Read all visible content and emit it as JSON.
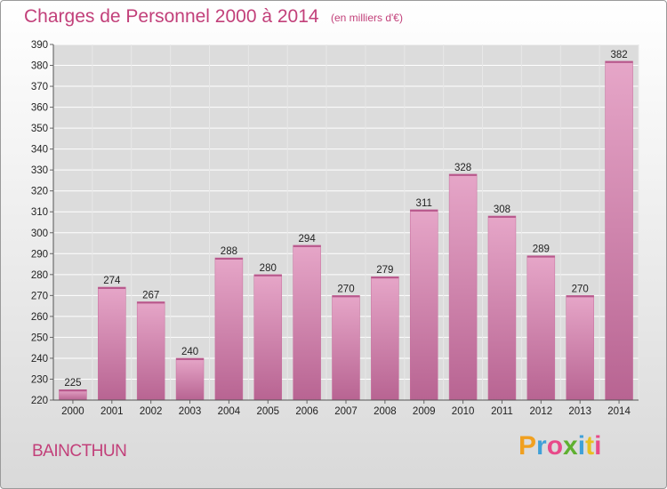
{
  "title": "Charges de Personnel 2000 à 2014",
  "subtitle": "(en milliers d'€)",
  "commune": "BAINCTHUN",
  "logo": {
    "letters": [
      "P",
      "r",
      "o",
      "x",
      "i",
      "t",
      "i"
    ],
    "colors": [
      "#f0a020",
      "#3fa0d8",
      "#e84a8a",
      "#5fb030",
      "#3fa0d8",
      "#e8c020",
      "#e84a8a"
    ]
  },
  "colors": {
    "accent": "#c2407a",
    "bar": "#d37fab",
    "bar_top": "#e6a6c8",
    "grid": "#ffffff",
    "plot_bg": "#dcdcdc"
  },
  "chart_data": {
    "type": "bar",
    "title": "Charges de Personnel 2000 à 2014",
    "subtitle": "(en milliers d'€)",
    "categories": [
      "2000",
      "2001",
      "2002",
      "2003",
      "2004",
      "2005",
      "2006",
      "2007",
      "2008",
      "2009",
      "2010",
      "2011",
      "2012",
      "2013",
      "2014"
    ],
    "values": [
      225,
      274,
      267,
      240,
      288,
      280,
      294,
      270,
      279,
      311,
      328,
      308,
      289,
      270,
      382
    ],
    "ylim": [
      220,
      390
    ],
    "yticks": [
      220,
      230,
      240,
      250,
      260,
      270,
      280,
      290,
      300,
      310,
      320,
      330,
      340,
      350,
      360,
      370,
      380,
      390
    ],
    "grid": true,
    "data_labels": true
  }
}
